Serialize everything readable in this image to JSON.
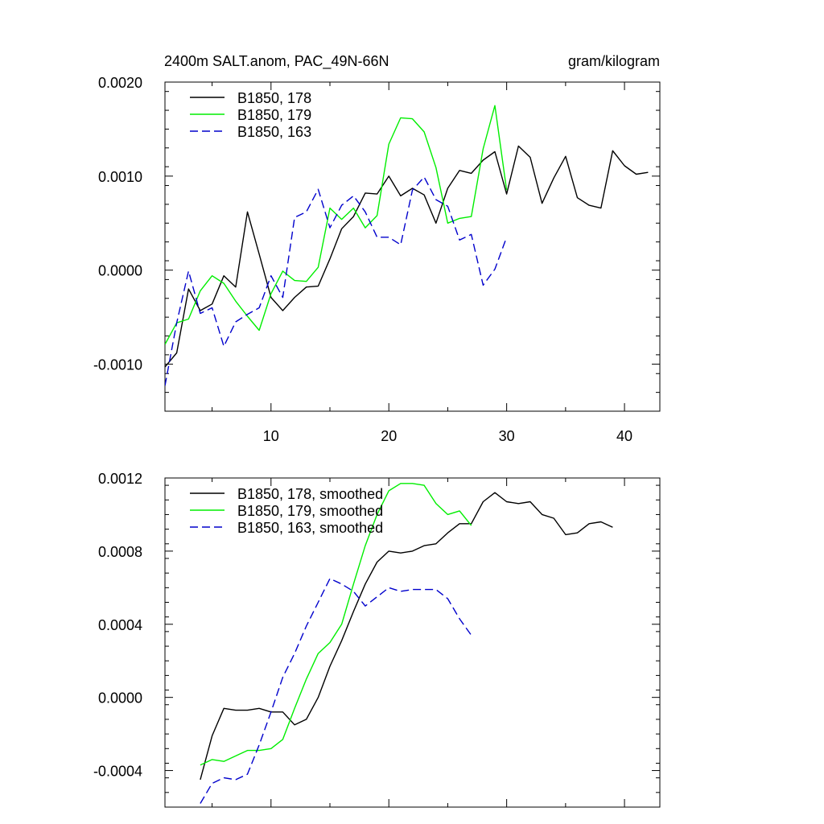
{
  "chart_data": [
    {
      "type": "line",
      "title_left": "2400m SALT.anom, PAC_49N-66N",
      "title_right": "gram/kilogram",
      "xlim": [
        1,
        43
      ],
      "ylim": [
        -0.0015,
        0.002
      ],
      "x_ticks": [
        10,
        20,
        30,
        40
      ],
      "x_tick_labels": [
        "10",
        "20",
        "30",
        "40"
      ],
      "y_ticks": [
        -0.001,
        0.0,
        0.001,
        0.002
      ],
      "y_tick_labels": [
        "-0.0010",
        "0.0000",
        "0.0010",
        "0.0020"
      ],
      "legend_position": "top-left",
      "series": [
        {
          "name": "B1850, 178",
          "color": "#000000",
          "dash": "solid",
          "x": [
            1,
            2,
            3,
            4,
            5,
            6,
            7,
            8,
            9,
            10,
            11,
            12,
            13,
            14,
            15,
            16,
            17,
            18,
            19,
            20,
            21,
            22,
            23,
            24,
            25,
            26,
            27,
            28,
            29,
            30,
            31,
            32,
            33,
            34,
            35,
            36,
            37,
            38,
            39,
            40,
            41,
            42
          ],
          "y": [
            -0.00103,
            -0.00088,
            -0.0002,
            -0.00043,
            -0.00036,
            -6e-05,
            -0.00018,
            0.00062,
            0.00017,
            -0.00029,
            -0.00043,
            -0.00029,
            -0.00018,
            -0.00017,
            0.00012,
            0.00044,
            0.00057,
            0.00082,
            0.00081,
            0.001,
            0.00079,
            0.00087,
            0.0008,
            0.0005,
            0.00087,
            0.00106,
            0.00103,
            0.00117,
            0.00126,
            0.00081,
            0.00132,
            0.0012,
            0.00071,
            0.00098,
            0.00121,
            0.00077,
            0.00069,
            0.00066,
            0.00127,
            0.00111,
            0.00102,
            0.00104
          ]
        },
        {
          "name": "B1850, 179",
          "color": "#00ee00",
          "dash": "solid",
          "x": [
            1,
            2,
            3,
            4,
            5,
            6,
            7,
            8,
            9,
            10,
            11,
            12,
            13,
            14,
            15,
            16,
            17,
            18,
            19,
            20,
            21,
            22,
            23,
            24,
            25,
            26,
            27,
            28,
            29,
            30
          ],
          "y": [
            -0.00079,
            -0.00056,
            -0.00052,
            -0.00022,
            -6e-05,
            -0.00014,
            -0.00033,
            -0.00049,
            -0.00064,
            -0.00025,
            -1e-05,
            -0.00011,
            -0.00012,
            3e-05,
            0.00066,
            0.00054,
            0.00066,
            0.00045,
            0.00058,
            0.00134,
            0.00162,
            0.00161,
            0.00147,
            0.00109,
            0.0005,
            0.00055,
            0.00057,
            0.00129,
            0.00175,
            0.00085
          ]
        },
        {
          "name": "B1850, 163",
          "color": "#0000cc",
          "dash": "dashed",
          "x": [
            1,
            2,
            3,
            4,
            5,
            6,
            7,
            8,
            9,
            10,
            11,
            12,
            13,
            14,
            15,
            16,
            17,
            18,
            19,
            20,
            21,
            22,
            23,
            24,
            25,
            26,
            27,
            28,
            29,
            30
          ],
          "y": [
            -0.00123,
            -0.00056,
            -1e-05,
            -0.00046,
            -0.0004,
            -0.00081,
            -0.00055,
            -0.00047,
            -0.0004,
            -6e-05,
            -0.00029,
            0.00056,
            0.00062,
            0.00086,
            0.00045,
            0.00069,
            0.00079,
            0.00062,
            0.00035,
            0.00035,
            0.00027,
            0.00085,
            0.00099,
            0.00075,
            0.00068,
            0.00032,
            0.00038,
            -0.00016,
            1e-05,
            0.00035
          ]
        }
      ]
    },
    {
      "type": "line",
      "xlim": [
        1,
        43
      ],
      "ylim": [
        -0.0006,
        0.0012
      ],
      "x_ticks": [
        10,
        20,
        30,
        40
      ],
      "y_ticks": [
        -0.0004,
        0.0,
        0.0004,
        0.0008,
        0.0012
      ],
      "y_tick_labels": [
        "-0.0004",
        "0.0000",
        "0.0004",
        "0.0008",
        "0.0012"
      ],
      "legend_position": "top-left",
      "series": [
        {
          "name": "B1850, 178, smoothed",
          "color": "#000000",
          "dash": "solid",
          "x": [
            4,
            5,
            6,
            7,
            8,
            9,
            10,
            11,
            12,
            13,
            14,
            15,
            16,
            17,
            18,
            19,
            20,
            21,
            22,
            23,
            24,
            25,
            26,
            27,
            28,
            29,
            30,
            31,
            32,
            33,
            34,
            35,
            36,
            37,
            38,
            39
          ],
          "y": [
            -0.00045,
            -0.00021,
            -6e-05,
            -7e-05,
            -7e-05,
            -6e-05,
            -8e-05,
            -8e-05,
            -0.00015,
            -0.00012,
            0.0,
            0.00017,
            0.00031,
            0.00047,
            0.00062,
            0.00074,
            0.0008,
            0.00079,
            0.0008,
            0.00083,
            0.00084,
            0.0009,
            0.00095,
            0.00095,
            0.00107,
            0.00112,
            0.00107,
            0.00106,
            0.00107,
            0.001,
            0.00098,
            0.00089,
            0.0009,
            0.00095,
            0.00096,
            0.00093
          ]
        },
        {
          "name": "B1850, 179, smoothed",
          "color": "#00ee00",
          "dash": "solid",
          "x": [
            4,
            5,
            6,
            7,
            8,
            9,
            10,
            11,
            12,
            13,
            14,
            15,
            16,
            17,
            18,
            19,
            20,
            21,
            22,
            23,
            24,
            25,
            26,
            27
          ],
          "y": [
            -0.00037,
            -0.00034,
            -0.00035,
            -0.00032,
            -0.00029,
            -0.00029,
            -0.00028,
            -0.00023,
            -6e-05,
            0.0001,
            0.00024,
            0.0003,
            0.0004,
            0.00062,
            0.00083,
            0.001,
            0.00113,
            0.00117,
            0.00117,
            0.00116,
            0.00106,
            0.001,
            0.00102,
            0.00094
          ]
        },
        {
          "name": "B1850, 163, smoothed",
          "color": "#0000cc",
          "dash": "dashed",
          "x": [
            4,
            5,
            6,
            7,
            8,
            9,
            10,
            11,
            12,
            13,
            14,
            15,
            16,
            17,
            18,
            19,
            20,
            21,
            22,
            23,
            24,
            25,
            26,
            27
          ],
          "y": [
            -0.00058,
            -0.00047,
            -0.00044,
            -0.00045,
            -0.00042,
            -0.00026,
            -8e-05,
            0.00011,
            0.00024,
            0.00039,
            0.00052,
            0.00065,
            0.00062,
            0.00058,
            0.0005,
            0.00055,
            0.0006,
            0.00058,
            0.00059,
            0.00059,
            0.00059,
            0.00054,
            0.00043,
            0.00034
          ]
        }
      ]
    }
  ]
}
